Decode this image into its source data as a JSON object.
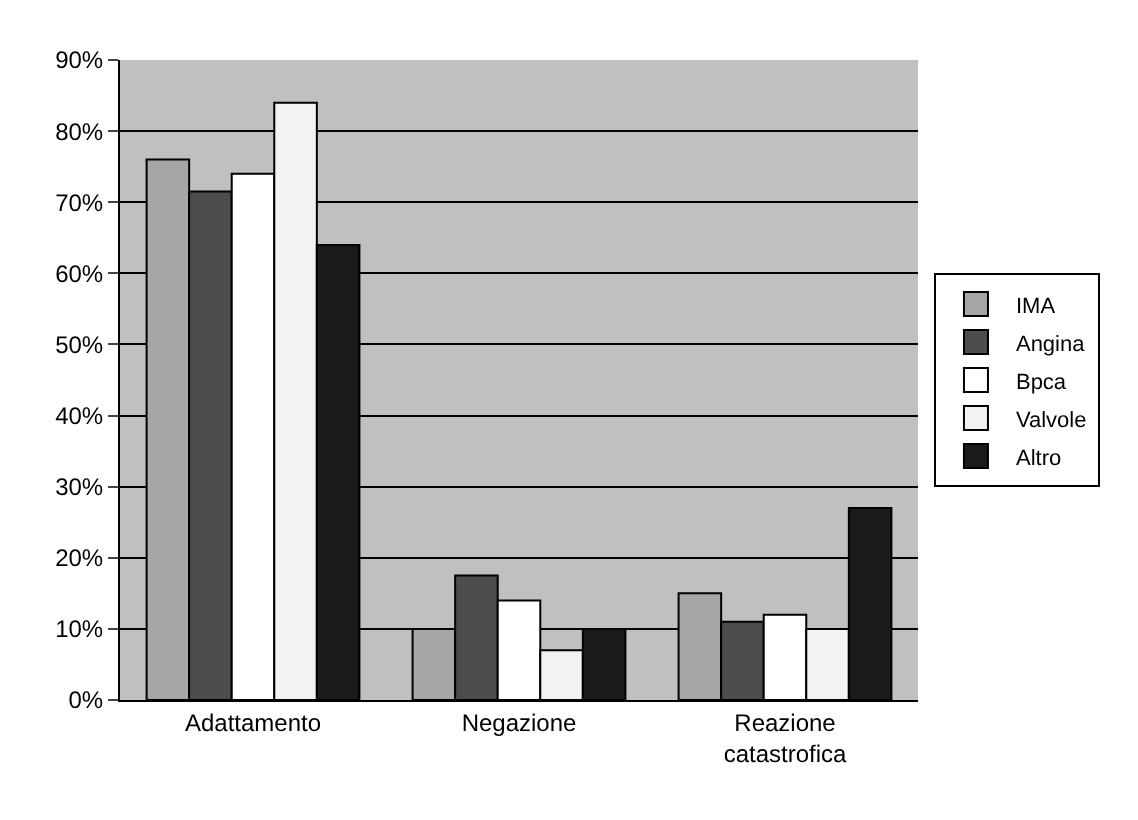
{
  "chart_data": {
    "type": "bar",
    "categories": [
      "Adattamento",
      "Negazione",
      "Reazione catastrofica"
    ],
    "series": [
      {
        "name": "IMA",
        "color": "#a6a6a6",
        "values": [
          76,
          10,
          15
        ]
      },
      {
        "name": "Angina",
        "color": "#4d4d4d",
        "values": [
          71.5,
          17.5,
          11
        ]
      },
      {
        "name": "Bpca",
        "color": "#ffffff",
        "values": [
          74,
          14,
          12
        ]
      },
      {
        "name": "Valvole",
        "color": "#f2f2f2",
        "values": [
          84,
          7,
          10
        ]
      },
      {
        "name": "Altro",
        "color": "#1a1a1a",
        "values": [
          64,
          10,
          27
        ]
      }
    ],
    "ylim": [
      0,
      90
    ],
    "yticks": [
      {
        "value": 0,
        "label": "0%"
      },
      {
        "value": 10,
        "label": "10%"
      },
      {
        "value": 20,
        "label": "20%"
      },
      {
        "value": 30,
        "label": "30%"
      },
      {
        "value": 40,
        "label": "40%"
      },
      {
        "value": 50,
        "label": "50%"
      },
      {
        "value": 60,
        "label": "60%"
      },
      {
        "value": 70,
        "label": "70%"
      },
      {
        "value": 80,
        "label": "80%"
      },
      {
        "value": 90,
        "label": "90%"
      }
    ],
    "grid": "y",
    "legend": "right"
  }
}
